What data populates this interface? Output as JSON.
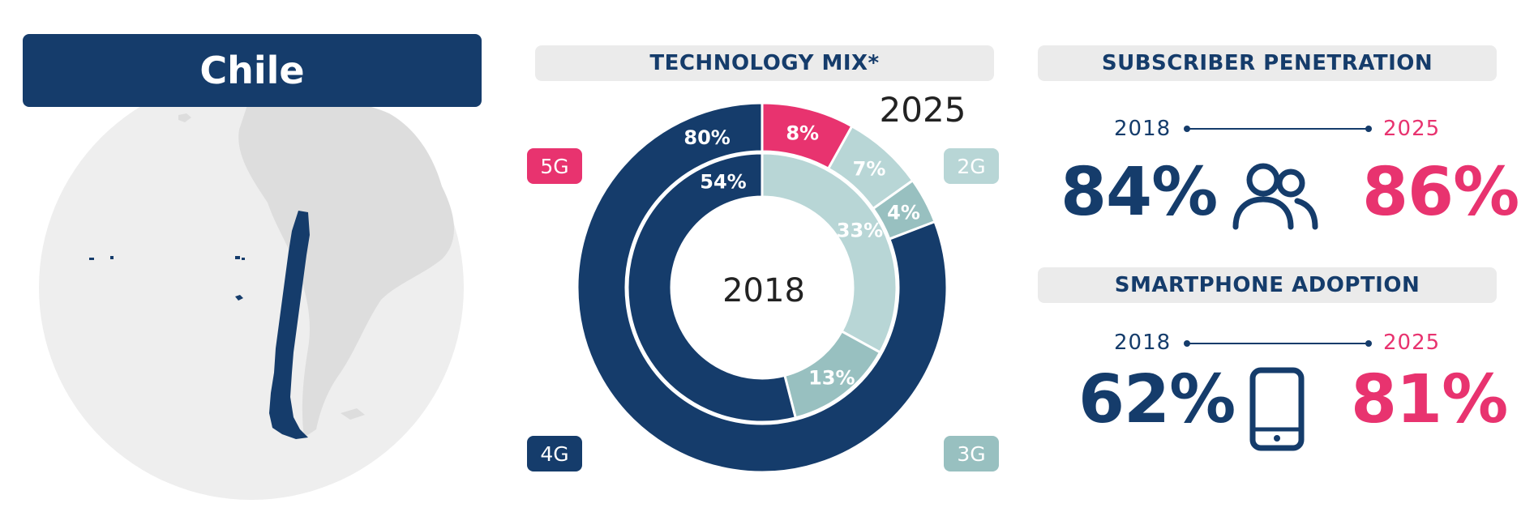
{
  "country": "Chile",
  "colors": {
    "navy": "#153c6b",
    "pink": "#e8336f",
    "light_teal": "#b8d6d6",
    "teal": "#98c0c0",
    "header_bg": "#ebebeb",
    "globe": "#eeeeee",
    "land": "#dddddd"
  },
  "technology_mix": {
    "title": "TECHNOLOGY MIX*",
    "outer_year": "2025",
    "inner_year": "2018",
    "labels": {
      "g5": "5G",
      "g2": "2G",
      "g4": "4G",
      "g3": "3G"
    }
  },
  "chart_data": {
    "type": "pie",
    "title": "TECHNOLOGY MIX*",
    "rings": [
      {
        "name": "2025",
        "slices": [
          {
            "label": "5G",
            "value": 8,
            "text": "8%",
            "color": "#e8336f"
          },
          {
            "label": "2G",
            "value": 7,
            "text": "7%",
            "color": "#b8d6d6"
          },
          {
            "label": "3G",
            "value": 4,
            "text": "4%",
            "color": "#98c0c0"
          },
          {
            "label": "4G",
            "value": 80,
            "text": "80%",
            "color": "#153c6b"
          }
        ]
      },
      {
        "name": "2018",
        "slices": [
          {
            "label": "2G",
            "value": 33,
            "text": "33%",
            "color": "#b8d6d6"
          },
          {
            "label": "3G",
            "value": 13,
            "text": "13%",
            "color": "#98c0c0"
          },
          {
            "label": "4G",
            "value": 54,
            "text": "54%",
            "color": "#153c6b"
          }
        ]
      }
    ]
  },
  "subscriber_penetration": {
    "title": "SUBSCRIBER PENETRATION",
    "year_start": "2018",
    "year_end": "2025",
    "value_start": "84%",
    "value_end": "86%",
    "icon": "people-icon"
  },
  "smartphone_adoption": {
    "title": "SMARTPHONE ADOPTION",
    "year_start": "2018",
    "year_end": "2025",
    "value_start": "62%",
    "value_end": "81%",
    "icon": "smartphone-icon"
  }
}
